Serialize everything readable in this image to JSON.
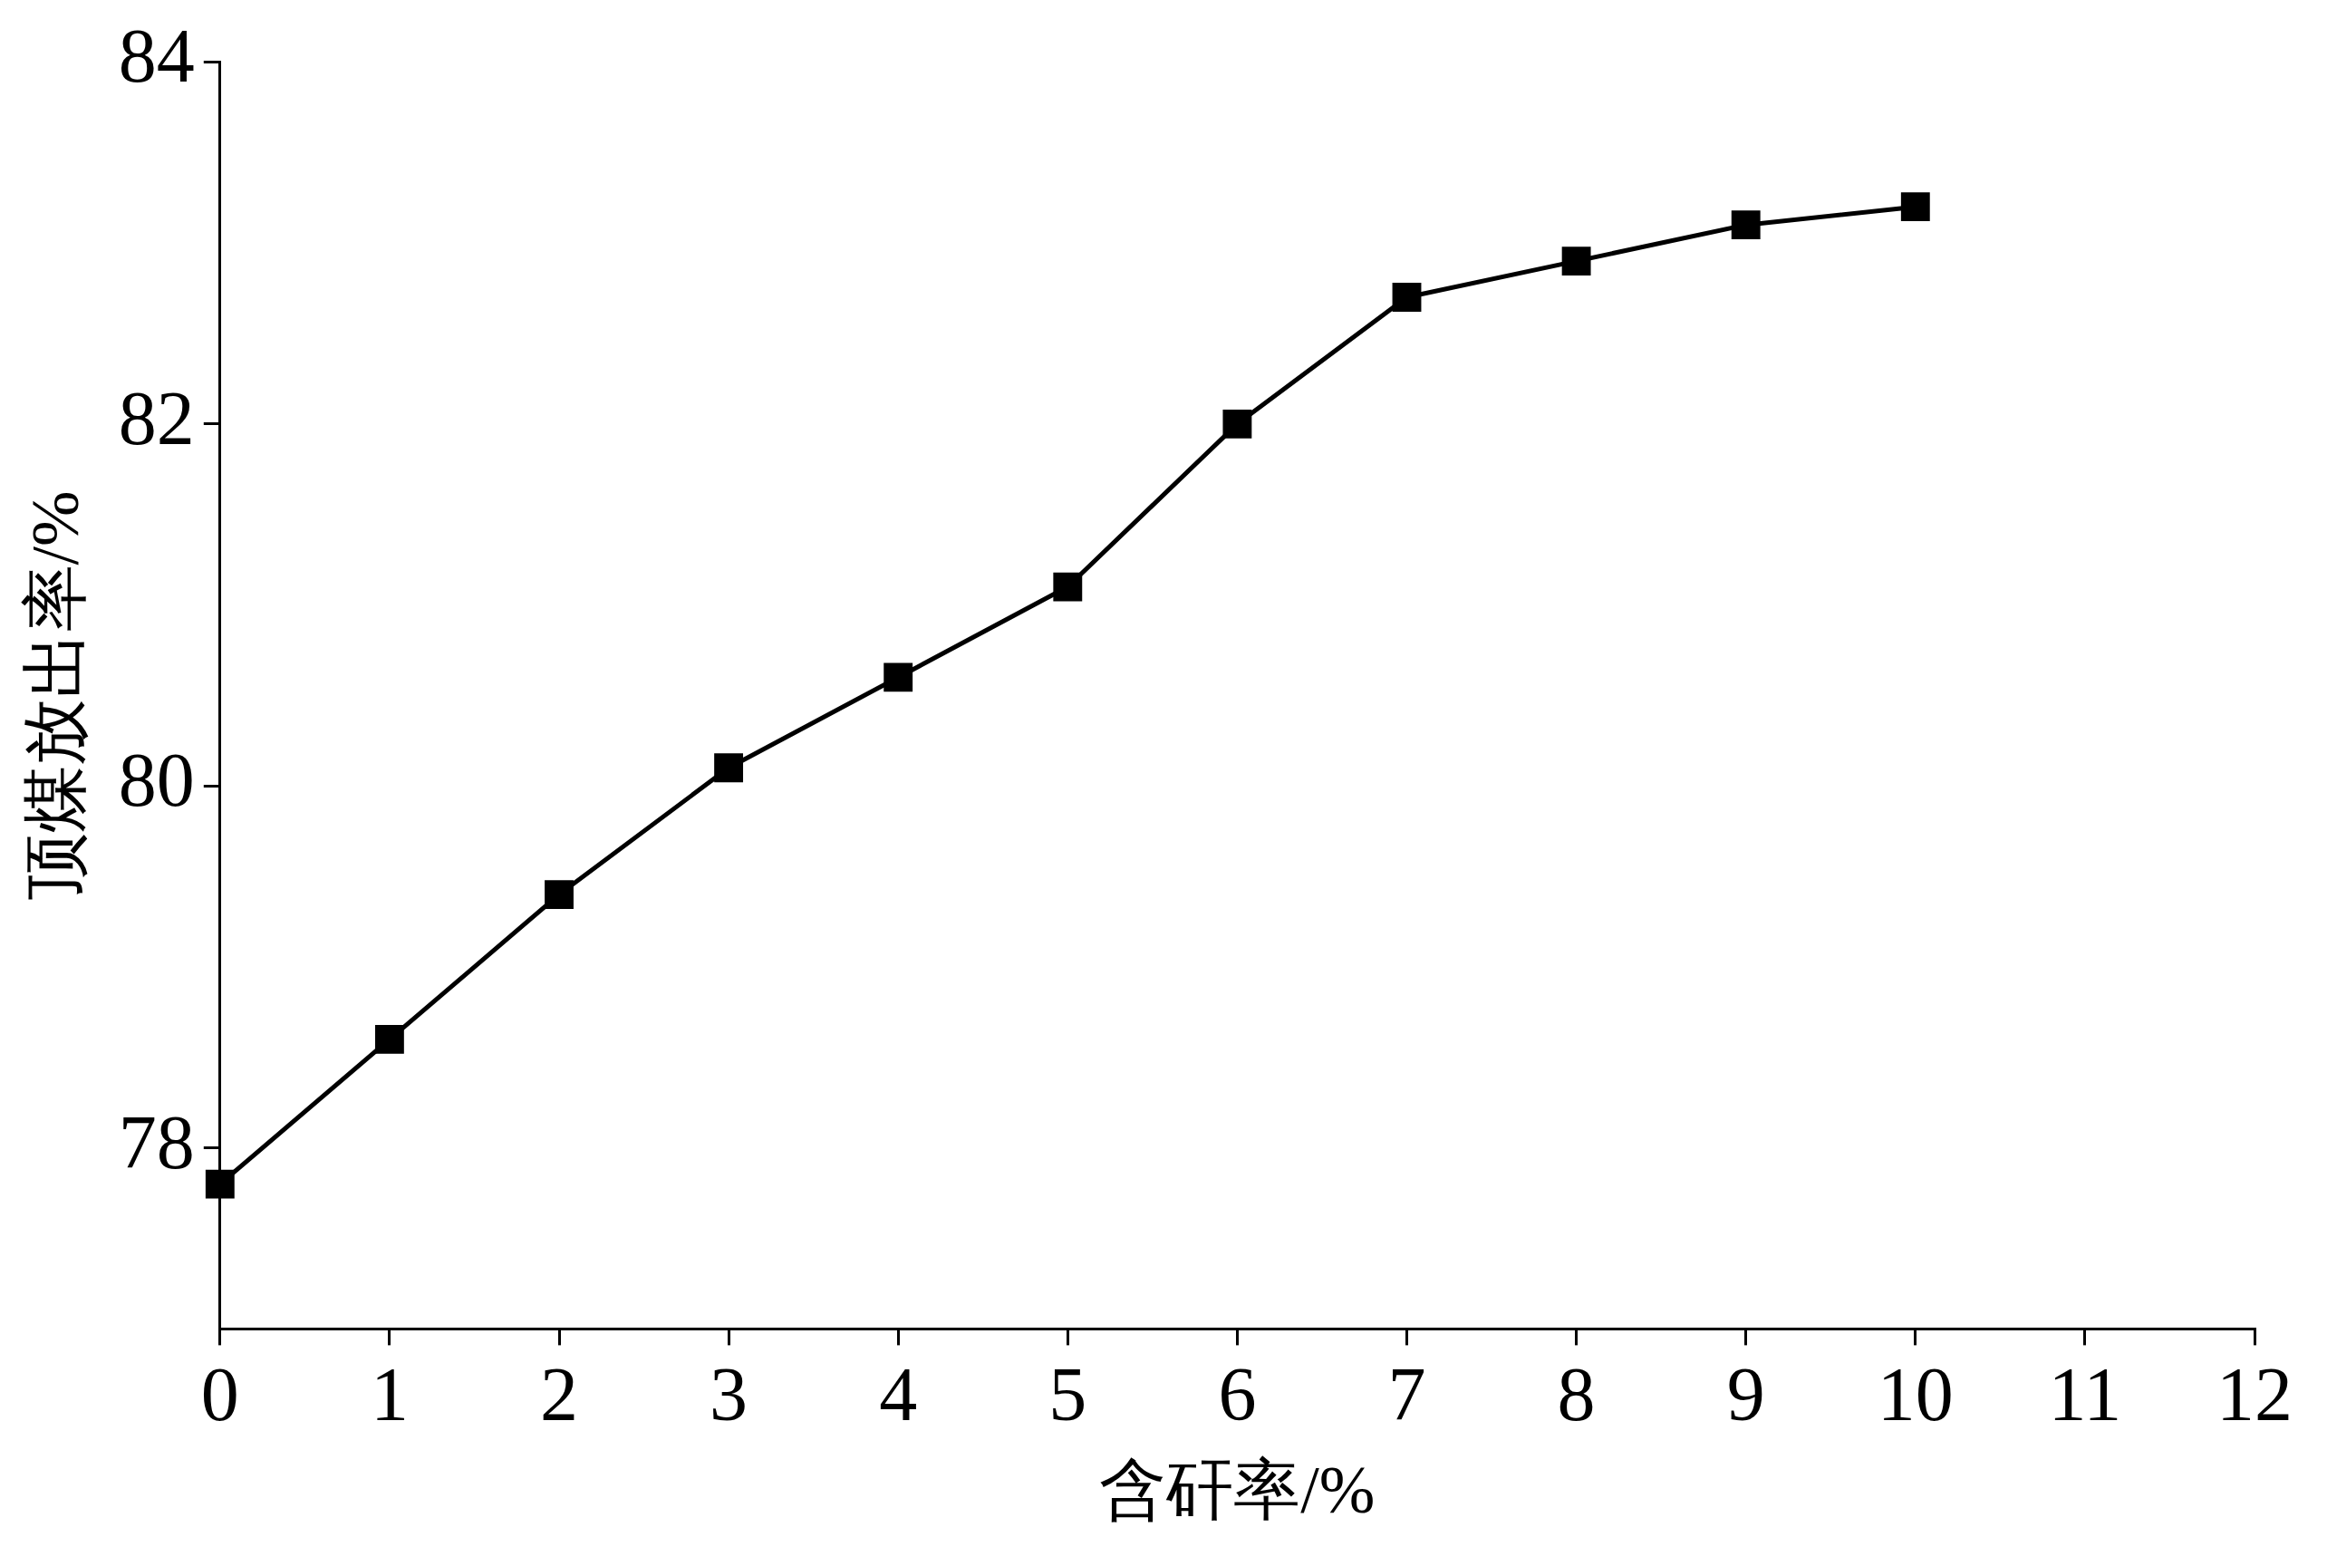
{
  "chart_data": {
    "type": "line",
    "xlabel": "含矸率/%",
    "ylabel": "顶煤放出率/%",
    "x": [
      0,
      1,
      2,
      3,
      4,
      5,
      6,
      7,
      8,
      9,
      10
    ],
    "series": [
      {
        "color": "#000000",
        "values": [
          77.8,
          78.6,
          79.4,
          80.1,
          80.6,
          81.1,
          82.0,
          82.7,
          82.9,
          83.1,
          83.2
        ]
      }
    ],
    "xlim": [
      0,
      12
    ],
    "xticks": [
      0,
      1,
      2,
      3,
      4,
      5,
      6,
      7,
      8,
      9,
      10,
      11,
      12
    ],
    "ylim": [
      77,
      84
    ],
    "yticks": [
      78,
      80,
      82,
      84
    ],
    "marker": "square",
    "line_style": "solid",
    "legend": false
  }
}
